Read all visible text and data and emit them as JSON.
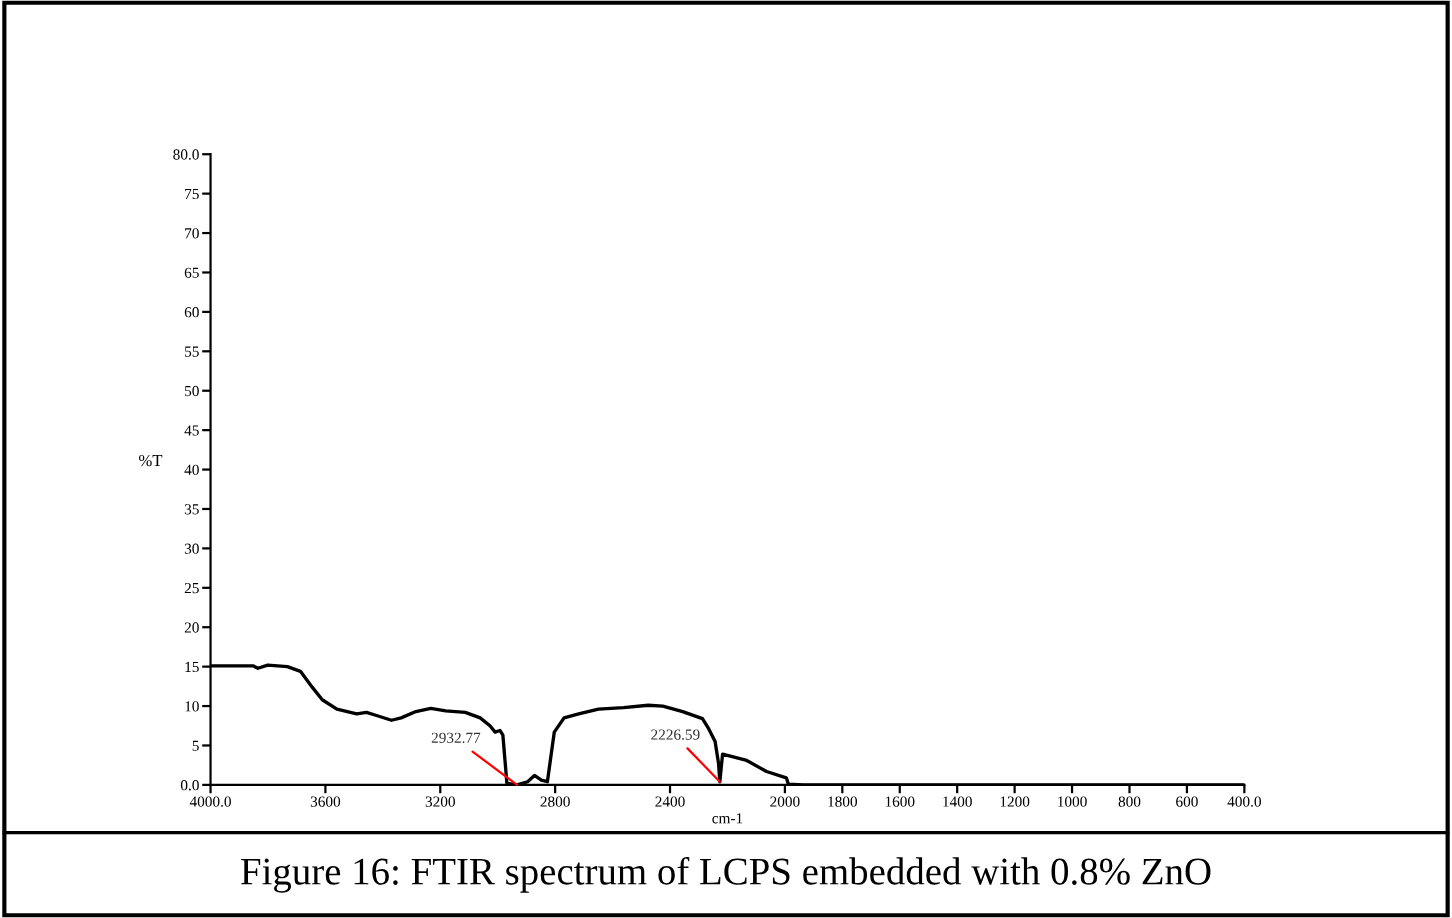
{
  "chart_data": {
    "type": "line",
    "xlabel": "cm-1",
    "ylabel": "%T",
    "xlim": [
      4000,
      400
    ],
    "xticks": [
      {
        "value": 4000,
        "label": "4000.0"
      },
      3600,
      3200,
      2800,
      2400,
      2000,
      1800,
      1600,
      1400,
      1200,
      1000,
      800,
      600,
      {
        "value": 400,
        "label": "400.0"
      }
    ],
    "ylim": [
      0,
      80
    ],
    "yticks": [
      {
        "value": 0,
        "label": "0.0"
      },
      5,
      10,
      15,
      20,
      25,
      30,
      35,
      40,
      45,
      50,
      55,
      60,
      65,
      70,
      75,
      {
        "value": 80,
        "label": "80.0"
      }
    ],
    "grid": false,
    "legend": false,
    "marker": "none",
    "line_style": "solid",
    "series": [
      {
        "color": "#000000",
        "x": [
          4000,
          3852,
          3835,
          3801,
          3732,
          3687,
          3646,
          3611,
          3560,
          3491,
          3457,
          3422,
          3370,
          3336,
          3285,
          3233,
          3181,
          3113,
          3061,
          3027,
          3009,
          2992,
          2982,
          2968,
          2932.77,
          2896,
          2872,
          2848,
          2827,
          2803,
          2769,
          2718,
          2649,
          2562,
          2476,
          2425,
          2356,
          2287,
          2265,
          2243,
          2231,
          2226.59,
          2217,
          2133,
          2064,
          1995,
          1988,
          1936,
          1800,
          1400,
          1000,
          600,
          400
        ],
        "values": [
          15.1,
          15.1,
          14.8,
          15.2,
          15.0,
          14.4,
          12.4,
          10.8,
          9.6,
          9.0,
          9.2,
          8.8,
          8.2,
          8.5,
          9.3,
          9.7,
          9.4,
          9.2,
          8.5,
          7.5,
          6.7,
          6.9,
          6.3,
          0.2,
          0,
          0.4,
          1.2,
          0.6,
          0.4,
          6.7,
          8.5,
          9.0,
          9.6,
          9.8,
          10.1,
          10.0,
          9.3,
          8.4,
          7.1,
          5.5,
          2.7,
          0.4,
          3.9,
          3.1,
          1.7,
          0.9,
          0.1,
          0,
          0,
          0,
          0,
          0,
          0
        ]
      }
    ],
    "annotations": [
      {
        "text": "2932.77",
        "x": 2932.77,
        "y": 0
      },
      {
        "text": "2226.59",
        "x": 2226.59,
        "y": 0.4
      },
      "Figure 16: FTIR spectrum of LCPS embedded with 0.8% ZnO"
    ]
  }
}
